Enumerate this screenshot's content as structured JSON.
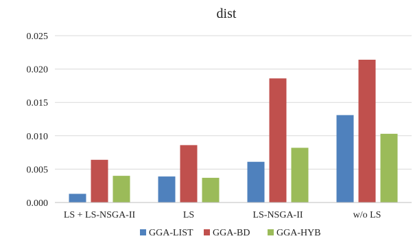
{
  "chart_data": {
    "type": "bar",
    "title": "dist",
    "xlabel": "",
    "ylabel": "",
    "categories": [
      "LS + LS-NSGA-II",
      "LS",
      "LS-NSGA-II",
      "w/o LS"
    ],
    "series": [
      {
        "name": "GGA-LIST",
        "color": "#4f81bd",
        "values": [
          0.0013,
          0.0039,
          0.0061,
          0.0131
        ]
      },
      {
        "name": "GGA-BD",
        "color": "#c0504d",
        "values": [
          0.0064,
          0.0086,
          0.0186,
          0.0214
        ]
      },
      {
        "name": "GGA-HYB",
        "color": "#9bbb59",
        "values": [
          0.004,
          0.0037,
          0.0082,
          0.0103
        ]
      }
    ],
    "ylim": [
      0,
      0.025
    ],
    "yticks": [
      "0.000",
      "0.005",
      "0.010",
      "0.015",
      "0.020",
      "0.025"
    ],
    "grid": true,
    "legend_position": "bottom"
  }
}
